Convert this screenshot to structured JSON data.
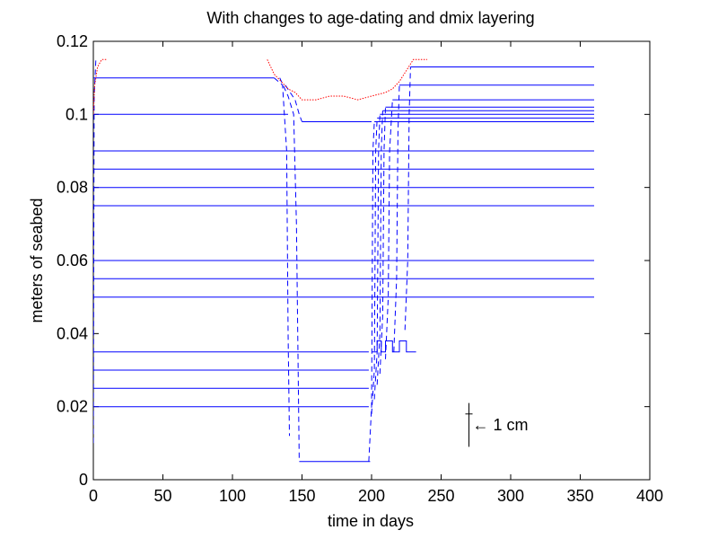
{
  "chart_data": {
    "type": "line",
    "title": "With changes to age-dating and dmix layering",
    "xlabel": "time in days",
    "ylabel": "meters of seabed",
    "xlim": [
      0,
      400
    ],
    "ylim": [
      0,
      0.12
    ],
    "xticks": [
      0,
      50,
      100,
      150,
      200,
      250,
      300,
      350,
      400
    ],
    "yticks": [
      0,
      0.02,
      0.04,
      0.06,
      0.08,
      0.1,
      0.12
    ],
    "xtick_labels": [
      "0",
      "50",
      "100",
      "150",
      "200",
      "250",
      "300",
      "350",
      "400"
    ],
    "ytick_labels": [
      "0",
      "0.02",
      "0.04",
      "0.06",
      "0.08",
      "0.1",
      "0.12"
    ],
    "grid": false,
    "colors": {
      "layers": "#0000ff",
      "surface": "#ff0000",
      "axes": "#000000"
    },
    "annotation": {
      "text": "← 1 cm",
      "x": 270,
      "y_bottom": 0.009,
      "y_top": 0.021
    },
    "series": [
      {
        "line_style": "solid",
        "color": "#0000ff",
        "start_x": 0,
        "x": [
          0,
          130
        ],
        "y": [
          0.11,
          0.11
        ]
      },
      {
        "line_style": "solid",
        "color": "#0000ff",
        "start_x": 0,
        "x": [
          0,
          140
        ],
        "y": [
          0.1,
          0.1
        ]
      },
      {
        "line_style": "solid",
        "color": "#0000ff",
        "start_x": 0,
        "x": [
          0,
          360
        ],
        "y": [
          0.09,
          0.09
        ]
      },
      {
        "line_style": "solid",
        "color": "#0000ff",
        "start_x": 0,
        "x": [
          0,
          360
        ],
        "y": [
          0.085,
          0.085
        ]
      },
      {
        "line_style": "solid",
        "color": "#0000ff",
        "start_x": 0,
        "x": [
          0,
          360
        ],
        "y": [
          0.08,
          0.08
        ]
      },
      {
        "line_style": "solid",
        "color": "#0000ff",
        "start_x": 0,
        "x": [
          0,
          360
        ],
        "y": [
          0.075,
          0.075
        ]
      },
      {
        "line_style": "solid",
        "color": "#0000ff",
        "start_x": 0,
        "x": [
          0,
          360
        ],
        "y": [
          0.06,
          0.06
        ]
      },
      {
        "line_style": "solid",
        "color": "#0000ff",
        "start_x": 0,
        "x": [
          0,
          360
        ],
        "y": [
          0.055,
          0.055
        ]
      },
      {
        "line_style": "solid",
        "color": "#0000ff",
        "start_x": 0,
        "x": [
          0,
          360
        ],
        "y": [
          0.05,
          0.05
        ]
      },
      {
        "line_style": "solid",
        "color": "#0000ff",
        "start_x": 0,
        "x": [
          0,
          198
        ],
        "y": [
          0.035,
          0.035
        ]
      },
      {
        "line_style": "solid",
        "color": "#0000ff",
        "start_x": 0,
        "x": [
          0,
          198
        ],
        "y": [
          0.03,
          0.03
        ]
      },
      {
        "line_style": "solid",
        "color": "#0000ff",
        "start_x": 0,
        "x": [
          0,
          198
        ],
        "y": [
          0.025,
          0.025
        ]
      },
      {
        "line_style": "solid",
        "color": "#0000ff",
        "start_x": 0,
        "x": [
          0,
          198
        ],
        "y": [
          0.02,
          0.02
        ]
      },
      {
        "line_style": "solid",
        "color": "#0000ff",
        "start_x": 148,
        "x": [
          148,
          199
        ],
        "y": [
          0.005,
          0.005
        ]
      },
      {
        "line_style": "solid",
        "color": "#0000ff",
        "start_x": 150,
        "x": [
          150,
          200
        ],
        "y": [
          0.098,
          0.098
        ]
      },
      {
        "line_style": "solid",
        "color": "#0000ff",
        "start_x": 202,
        "x": [
          202,
          360
        ],
        "y": [
          0.098,
          0.098
        ]
      },
      {
        "line_style": "solid",
        "color": "#0000ff",
        "start_x": 204,
        "x": [
          204,
          360
        ],
        "y": [
          0.099,
          0.099
        ]
      },
      {
        "line_style": "solid",
        "color": "#0000ff",
        "start_x": 206,
        "x": [
          206,
          360
        ],
        "y": [
          0.1,
          0.1
        ]
      },
      {
        "line_style": "solid",
        "color": "#0000ff",
        "start_x": 208,
        "x": [
          208,
          360
        ],
        "y": [
          0.101,
          0.101
        ]
      },
      {
        "line_style": "solid",
        "color": "#0000ff",
        "start_x": 210,
        "x": [
          210,
          360
        ],
        "y": [
          0.102,
          0.102
        ]
      },
      {
        "line_style": "solid",
        "color": "#0000ff",
        "start_x": 215,
        "x": [
          215,
          360
        ],
        "y": [
          0.104,
          0.104
        ]
      },
      {
        "line_style": "solid",
        "color": "#0000ff",
        "start_x": 220,
        "x": [
          220,
          360
        ],
        "y": [
          0.108,
          0.108
        ]
      },
      {
        "line_style": "solid",
        "color": "#0000ff",
        "start_x": 228,
        "x": [
          228,
          360
        ],
        "y": [
          0.113,
          0.113
        ]
      },
      {
        "line_style": "solid",
        "color": "#0000ff",
        "start_x": 200,
        "x": [
          200,
          204,
          204,
          207,
          207,
          210,
          210,
          215,
          215,
          220,
          220,
          225,
          225,
          232
        ],
        "y": [
          0.035,
          0.035,
          0.038,
          0.038,
          0.035,
          0.035,
          0.038,
          0.038,
          0.035,
          0.035,
          0.038,
          0.038,
          0.035,
          0.035
        ]
      },
      {
        "line_style": "dashed",
        "color": "#0000ff",
        "start_x": 0,
        "x": [
          0,
          0.6,
          1.2,
          1.8
        ],
        "y": [
          0.01,
          0.105,
          0.11,
          0.115
        ]
      },
      {
        "line_style": "dashed",
        "color": "#0000ff",
        "start_x": 130,
        "x": [
          130,
          136,
          139,
          140,
          141
        ],
        "y": [
          0.11,
          0.108,
          0.09,
          0.04,
          0.012
        ]
      },
      {
        "line_style": "dashed",
        "color": "#0000ff",
        "start_x": 134,
        "x": [
          134,
          140,
          144,
          146,
          148
        ],
        "y": [
          0.11,
          0.105,
          0.1,
          0.07,
          0.005
        ]
      },
      {
        "line_style": "dashed",
        "color": "#0000ff",
        "start_x": 138,
        "x": [
          138,
          145,
          148,
          150
        ],
        "y": [
          0.108,
          0.104,
          0.1,
          0.098
        ]
      },
      {
        "line_style": "dashed",
        "color": "#0000ff",
        "start_x": 198,
        "x": [
          198,
          200,
          201,
          202
        ],
        "y": [
          0.005,
          0.02,
          0.09,
          0.098
        ]
      },
      {
        "line_style": "dashed",
        "color": "#0000ff",
        "start_x": 200,
        "x": [
          200,
          202,
          203,
          204
        ],
        "y": [
          0.018,
          0.03,
          0.09,
          0.099
        ]
      },
      {
        "line_style": "dashed",
        "color": "#0000ff",
        "start_x": 202,
        "x": [
          202,
          204,
          205,
          206
        ],
        "y": [
          0.022,
          0.035,
          0.09,
          0.1
        ]
      },
      {
        "line_style": "dashed",
        "color": "#0000ff",
        "start_x": 204,
        "x": [
          204,
          206,
          207,
          208
        ],
        "y": [
          0.026,
          0.04,
          0.09,
          0.101
        ]
      },
      {
        "line_style": "dashed",
        "color": "#0000ff",
        "start_x": 206,
        "x": [
          206,
          208,
          209,
          210
        ],
        "y": [
          0.029,
          0.045,
          0.09,
          0.102
        ]
      },
      {
        "line_style": "dashed",
        "color": "#0000ff",
        "start_x": 210,
        "x": [
          210,
          212,
          213,
          215
        ],
        "y": [
          0.033,
          0.05,
          0.09,
          0.104
        ]
      },
      {
        "line_style": "dashed",
        "color": "#0000ff",
        "start_x": 216,
        "x": [
          216,
          218,
          219,
          220
        ],
        "y": [
          0.035,
          0.055,
          0.095,
          0.108
        ]
      },
      {
        "line_style": "dashed",
        "color": "#0000ff",
        "start_x": 224,
        "x": [
          224,
          226,
          227,
          228
        ],
        "y": [
          0.041,
          0.06,
          0.1,
          0.113
        ]
      },
      {
        "line_style": "dotted",
        "color": "#ff0000",
        "start_x": 0,
        "x": [
          0,
          1,
          3,
          6,
          10
        ],
        "y": [
          0.1,
          0.108,
          0.113,
          0.115,
          0.115
        ]
      },
      {
        "line_style": "dotted",
        "color": "#ff0000",
        "start_x": 125,
        "x": [
          125,
          130,
          135,
          140,
          145,
          150,
          160,
          170,
          180,
          190,
          200,
          210,
          215,
          220,
          225,
          230,
          235,
          240
        ],
        "y": [
          0.115,
          0.111,
          0.109,
          0.107,
          0.106,
          0.104,
          0.104,
          0.105,
          0.105,
          0.104,
          0.105,
          0.106,
          0.107,
          0.109,
          0.112,
          0.115,
          0.115,
          0.115
        ]
      }
    ]
  }
}
